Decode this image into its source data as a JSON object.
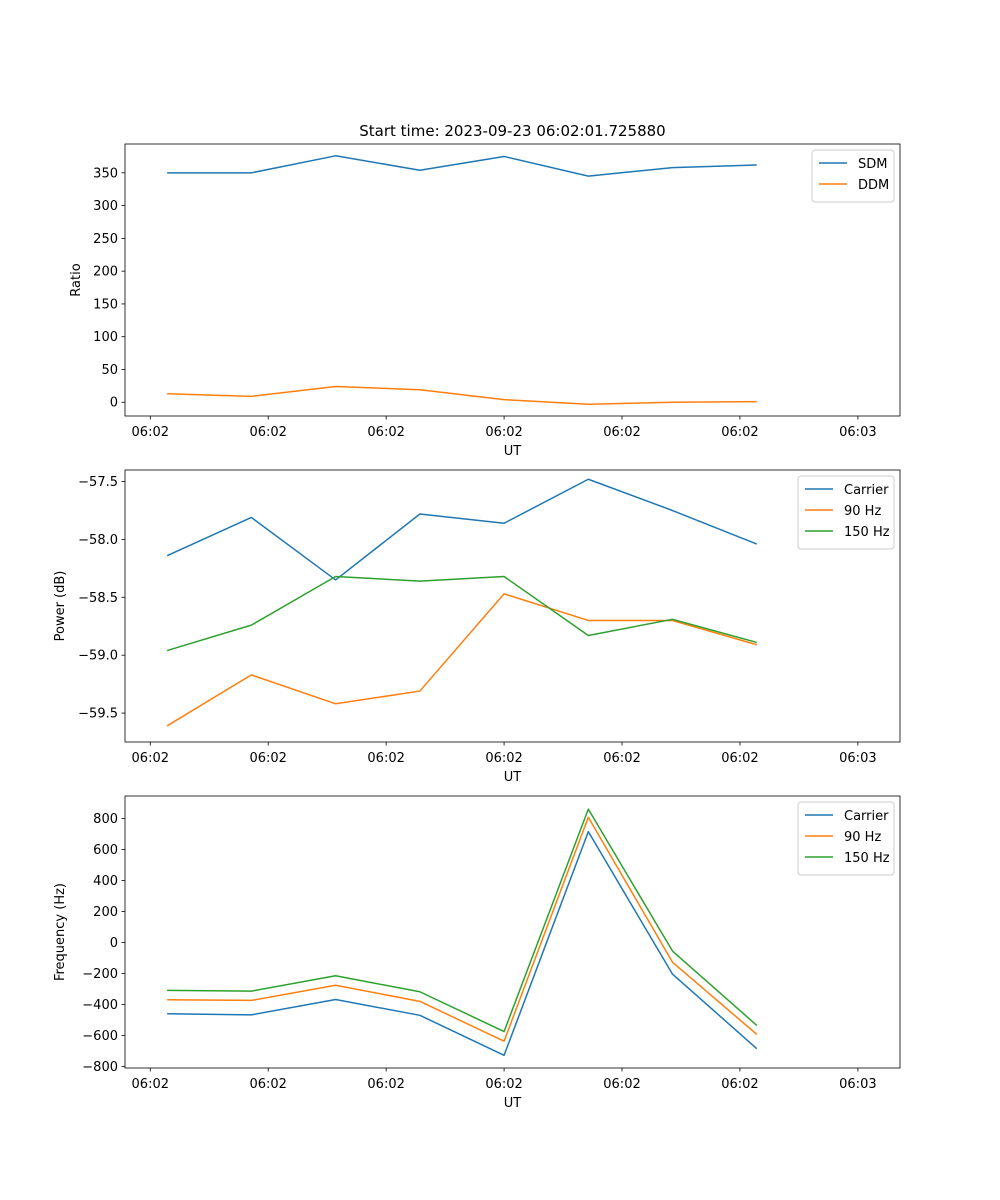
{
  "figure_title": "Start time: 2023-09-23 06:02:01.725880",
  "colors": {
    "blue": "#1f77b4",
    "orange": "#ff7f0e",
    "green": "#2ca02c",
    "axis": "#000000",
    "legend_border": "#cccccc"
  },
  "chart_data": [
    {
      "type": "line",
      "title": "Start time: 2023-09-23 06:02:01.725880",
      "xlabel": "UT",
      "ylabel": "Ratio",
      "x": [
        1,
        2,
        3,
        4,
        5,
        6,
        7,
        8
      ],
      "x_ticks": [
        0.8,
        2.2,
        3.6,
        5.0,
        6.4,
        7.8,
        9.2
      ],
      "x_tick_labels": [
        "06:02",
        "06:02",
        "06:02",
        "06:02",
        "06:02",
        "06:02",
        "06:03"
      ],
      "xlim": [
        0.5,
        9.7
      ],
      "ylim": [
        -21,
        394
      ],
      "y_ticks": [
        0,
        50,
        100,
        150,
        200,
        250,
        300,
        350
      ],
      "y_tick_labels": [
        "0",
        "50",
        "100",
        "150",
        "200",
        "250",
        "300",
        "350"
      ],
      "legend_position": "top-right",
      "grid": false,
      "series": [
        {
          "name": "SDM",
          "color": "#1f77b4",
          "values": [
            350,
            350,
            376,
            354,
            375,
            345,
            358,
            362
          ]
        },
        {
          "name": "DDM",
          "color": "#ff7f0e",
          "values": [
            13,
            9,
            24,
            19,
            4,
            -3,
            0,
            1
          ]
        }
      ]
    },
    {
      "type": "line",
      "title": "",
      "xlabel": "UT",
      "ylabel": "Power (dB)",
      "x": [
        1,
        2,
        3,
        4,
        5,
        6,
        7,
        8
      ],
      "x_ticks": [
        0.8,
        2.2,
        3.6,
        5.0,
        6.4,
        7.8,
        9.2
      ],
      "x_tick_labels": [
        "06:02",
        "06:02",
        "06:02",
        "06:02",
        "06:02",
        "06:02",
        "06:03"
      ],
      "xlim": [
        0.5,
        9.7
      ],
      "ylim": [
        -59.75,
        -57.4
      ],
      "y_ticks": [
        -57.5,
        -58.0,
        -58.5,
        -59.0,
        -59.5
      ],
      "y_tick_labels": [
        "−57.5",
        "−58.0",
        "−58.5",
        "−59.0",
        "−59.5"
      ],
      "legend_position": "top-right",
      "grid": false,
      "series": [
        {
          "name": "Carrier",
          "color": "#1f77b4",
          "values": [
            -58.14,
            -57.81,
            -58.35,
            -57.78,
            -57.86,
            -57.48,
            -57.75,
            -58.04
          ]
        },
        {
          "name": "90 Hz",
          "color": "#ff7f0e",
          "values": [
            -59.61,
            -59.17,
            -59.42,
            -59.31,
            -58.47,
            -58.7,
            -58.7,
            -58.91
          ]
        },
        {
          "name": "150 Hz",
          "color": "#2ca02c",
          "values": [
            -58.96,
            -58.74,
            -58.32,
            -58.36,
            -58.32,
            -58.83,
            -58.69,
            -58.89
          ]
        }
      ]
    },
    {
      "type": "line",
      "title": "",
      "xlabel": "UT",
      "ylabel": "Frequency (Hz)",
      "x": [
        1,
        2,
        3,
        4,
        5,
        6,
        7,
        8
      ],
      "x_ticks": [
        0.8,
        2.2,
        3.6,
        5.0,
        6.4,
        7.8,
        9.2
      ],
      "x_tick_labels": [
        "06:02",
        "06:02",
        "06:02",
        "06:02",
        "06:02",
        "06:02",
        "06:03"
      ],
      "xlim": [
        0.5,
        9.7
      ],
      "ylim": [
        -810,
        945
      ],
      "y_ticks": [
        -800,
        -600,
        -400,
        -200,
        0,
        200,
        400,
        600,
        800
      ],
      "y_tick_labels": [
        "−800",
        "−600",
        "−400",
        "−200",
        "0",
        "200",
        "400",
        "600",
        "800"
      ],
      "legend_position": "top-right",
      "grid": false,
      "series": [
        {
          "name": "Carrier",
          "color": "#1f77b4",
          "values": [
            -460,
            -467,
            -368,
            -470,
            -728,
            715,
            -205,
            -685
          ]
        },
        {
          "name": "90 Hz",
          "color": "#ff7f0e",
          "values": [
            -370,
            -374,
            -276,
            -380,
            -637,
            808,
            -128,
            -593
          ]
        },
        {
          "name": "150 Hz",
          "color": "#2ca02c",
          "values": [
            -309,
            -314,
            -215,
            -318,
            -575,
            860,
            -56,
            -535
          ]
        }
      ]
    }
  ]
}
